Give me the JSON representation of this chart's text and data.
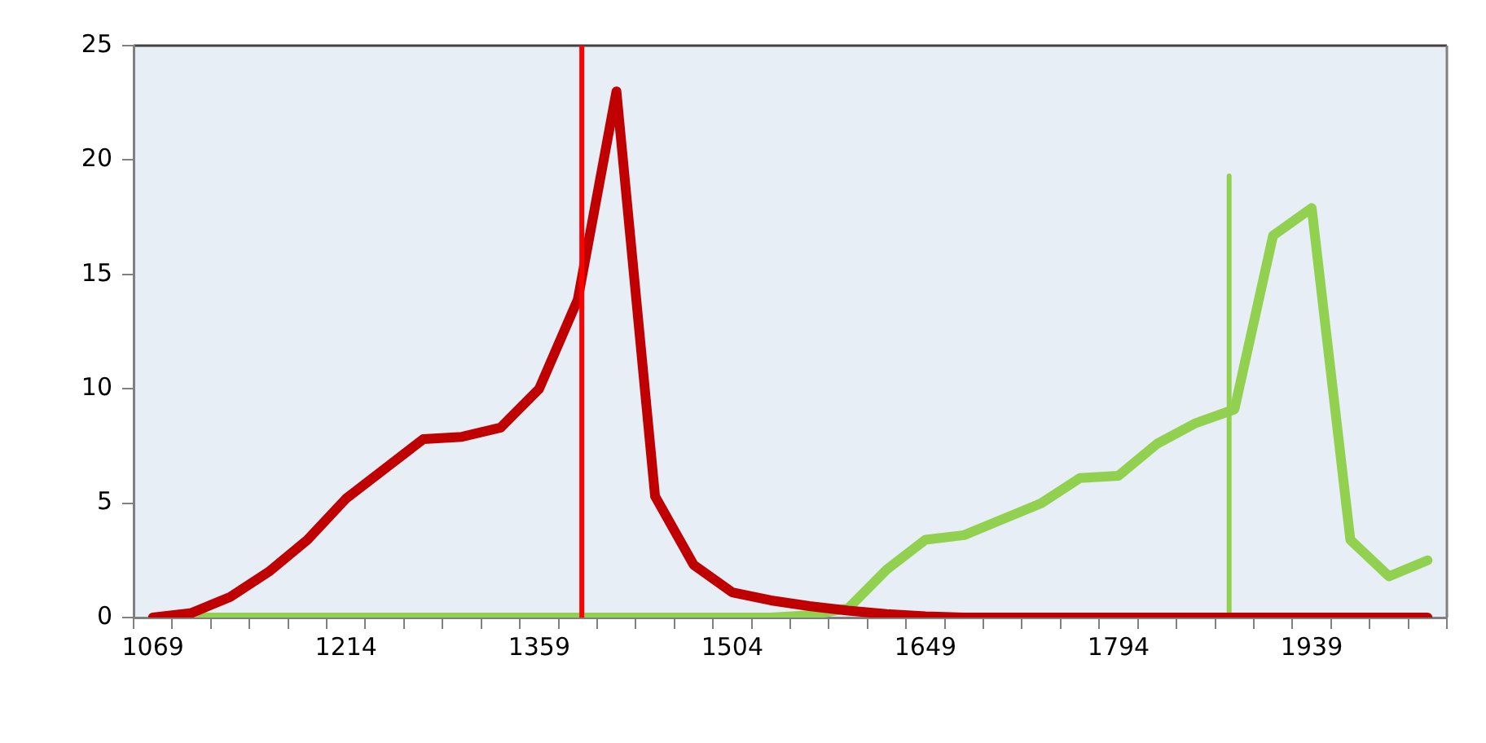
{
  "chart_data": {
    "type": "line",
    "x": [
      1069,
      1098,
      1127,
      1156,
      1185,
      1214,
      1243,
      1272,
      1301,
      1330,
      1359,
      1388,
      1417,
      1446,
      1475,
      1504,
      1533,
      1562,
      1591,
      1620,
      1649,
      1678,
      1707,
      1736,
      1765,
      1794,
      1823,
      1852,
      1881,
      1910,
      1939,
      1968,
      1997,
      2026
    ],
    "series": [
      {
        "color": "#c00000",
        "values": [
          0,
          0.2,
          0.9,
          2.0,
          3.4,
          5.2,
          6.5,
          7.8,
          7.9,
          8.3,
          10.0,
          13.9,
          23.0,
          5.3,
          2.3,
          1.1,
          0.75,
          0.5,
          0.3,
          0.15,
          0.05,
          0,
          0,
          0,
          0,
          0,
          0,
          0,
          0,
          0,
          0,
          0,
          0,
          0
        ]
      },
      {
        "color": "#92d050",
        "values": [
          0,
          0,
          0,
          0,
          0,
          0,
          0,
          0,
          0,
          0,
          0,
          0,
          0,
          0,
          0,
          0,
          0,
          0.1,
          0.4,
          2.1,
          3.4,
          3.6,
          4.3,
          5.0,
          6.1,
          6.2,
          7.6,
          8.5,
          9.1,
          16.7,
          17.9,
          3.4,
          1.8,
          2.5
        ]
      },
      {
        "type": "line",
        "color": "#92d050",
        "x": [
          1877,
          1877
        ],
        "values": [
          0,
          19.3
        ]
      }
    ],
    "ref_lines": [
      {
        "axis": "x",
        "value": 1391,
        "color": "#ff0000"
      }
    ],
    "xlim": [
      1054.5,
      2040.5
    ],
    "xticks": [
      1069,
      1214,
      1359,
      1504,
      1649,
      1794,
      1939,
      {
        "value": 1054.5,
        "label": null
      },
      {
        "value": 1083.5,
        "label": null
      },
      {
        "value": 1112.5,
        "label": null
      },
      {
        "value": 1141.5,
        "label": null
      },
      {
        "value": 1170.5,
        "label": null
      },
      {
        "value": 1199.5,
        "label": null
      },
      {
        "value": 1228.5,
        "label": null
      },
      {
        "value": 1257.5,
        "label": null
      },
      {
        "value": 1286.5,
        "label": null
      },
      {
        "value": 1315.5,
        "label": null
      },
      {
        "value": 1344.5,
        "label": null
      },
      {
        "value": 1373.5,
        "label": null
      },
      {
        "value": 1402.5,
        "label": null
      },
      {
        "value": 1431.5,
        "label": null
      },
      {
        "value": 1460.5,
        "label": null
      },
      {
        "value": 1489.5,
        "label": null
      },
      {
        "value": 1518.5,
        "label": null
      },
      {
        "value": 1547.5,
        "label": null
      },
      {
        "value": 1576.5,
        "label": null
      },
      {
        "value": 1605.5,
        "label": null
      },
      {
        "value": 1634.5,
        "label": null
      },
      {
        "value": 1663.5,
        "label": null
      },
      {
        "value": 1692.5,
        "label": null
      },
      {
        "value": 1721.5,
        "label": null
      },
      {
        "value": 1750.5,
        "label": null
      },
      {
        "value": 1779.5,
        "label": null
      },
      {
        "value": 1808.5,
        "label": null
      },
      {
        "value": 1837.5,
        "label": null
      },
      {
        "value": 1866.5,
        "label": null
      },
      {
        "value": 1895.5,
        "label": null
      },
      {
        "value": 1924.5,
        "label": null
      },
      {
        "value": 1953.5,
        "label": null
      },
      {
        "value": 1982.5,
        "label": null
      },
      {
        "value": 2011.5,
        "label": null
      },
      {
        "value": 2040.5,
        "label": null
      }
    ],
    "ylim": [
      0,
      25
    ],
    "yticks": [
      0,
      5,
      10,
      15,
      20,
      25
    ],
    "grid": false,
    "legend": false,
    "marker": "none",
    "line_style": "solid"
  }
}
